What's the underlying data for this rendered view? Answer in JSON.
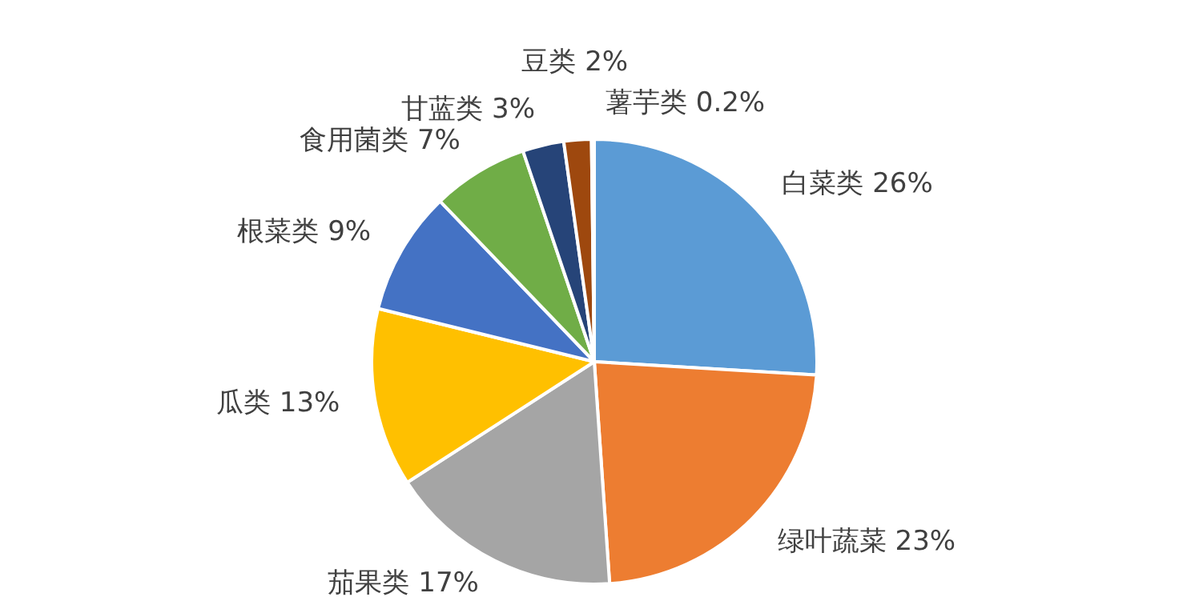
{
  "chart_data": {
    "type": "pie",
    "categories": [
      "白菜类",
      "绿叶蔬菜",
      "茄果类",
      "瓜类",
      "根菜类",
      "食用菌类",
      "甘蓝类",
      "豆类",
      "薯芋类"
    ],
    "values": [
      26,
      23,
      17,
      13,
      9,
      7,
      3,
      2,
      0.2
    ],
    "value_labels": [
      "26%",
      "23%",
      "17%",
      "13%",
      "9%",
      "7%",
      "3%",
      "2%",
      "0.2%"
    ],
    "colors": [
      "#5b9bd5",
      "#ed7d31",
      "#a5a5a5",
      "#ffc000",
      "#4472c4",
      "#70ad47",
      "#264478",
      "#9e480e",
      "#636363"
    ],
    "legend": false
  }
}
